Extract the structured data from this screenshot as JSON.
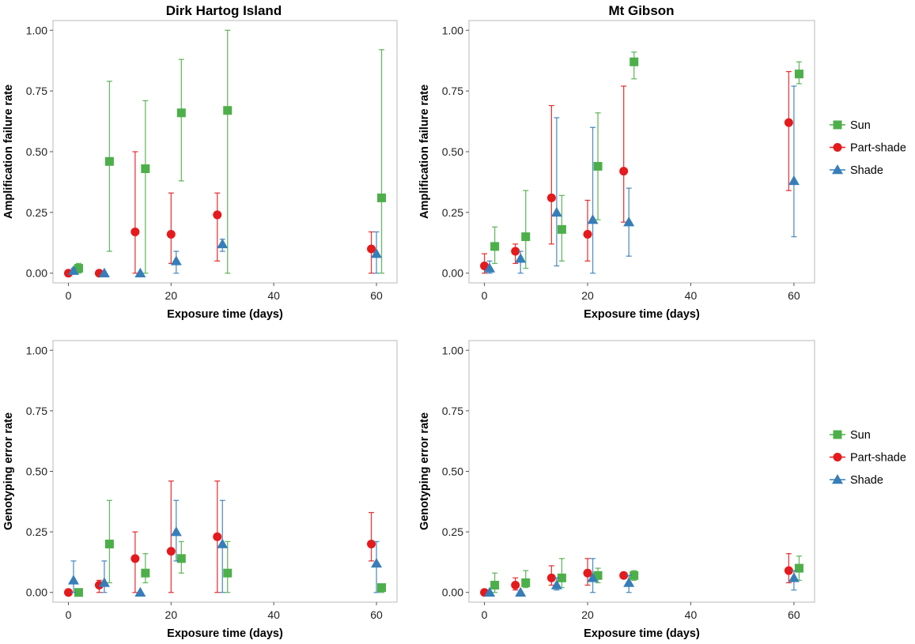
{
  "legend": {
    "items": [
      {
        "label": "Sun",
        "color": "#4daf4a",
        "shape": "square"
      },
      {
        "label": "Part-shade",
        "color": "#e41a1c",
        "shape": "circle"
      },
      {
        "label": "Shade",
        "color": "#377eb8",
        "shape": "triangle"
      }
    ]
  },
  "chart_data": [
    {
      "type": "scatter",
      "title": "Dirk Hartog Island",
      "xlabel": "Exposure time (days)",
      "ylabel": "Amplification failure rate",
      "xlim": [
        -3,
        64
      ],
      "ylim": [
        -0.04,
        1.04
      ],
      "xticks": [
        0,
        20,
        40,
        60
      ],
      "yticks": [
        0.0,
        0.25,
        0.5,
        0.75,
        1.0
      ],
      "series": [
        {
          "name": "Sun",
          "points": [
            {
              "x": 2,
              "y": 0.02,
              "lo": 0.0,
              "hi": 0.04
            },
            {
              "x": 8,
              "y": 0.46,
              "lo": 0.09,
              "hi": 0.79
            },
            {
              "x": 15,
              "y": 0.43,
              "lo": 0.0,
              "hi": 0.71
            },
            {
              "x": 22,
              "y": 0.66,
              "lo": 0.38,
              "hi": 0.88
            },
            {
              "x": 31,
              "y": 0.67,
              "lo": 0.0,
              "hi": 1.0
            },
            {
              "x": 61,
              "y": 0.31,
              "lo": 0.0,
              "hi": 0.92
            }
          ]
        },
        {
          "name": "Part-shade",
          "points": [
            {
              "x": 0,
              "y": 0.0,
              "lo": 0.0,
              "hi": 0.0
            },
            {
              "x": 6,
              "y": 0.0,
              "lo": 0.0,
              "hi": 0.0
            },
            {
              "x": 13,
              "y": 0.17,
              "lo": 0.0,
              "hi": 0.5
            },
            {
              "x": 20,
              "y": 0.16,
              "lo": 0.04,
              "hi": 0.33
            },
            {
              "x": 29,
              "y": 0.24,
              "lo": 0.05,
              "hi": 0.33
            },
            {
              "x": 59,
              "y": 0.1,
              "lo": 0.0,
              "hi": 0.17
            }
          ]
        },
        {
          "name": "Shade",
          "points": [
            {
              "x": 1,
              "y": 0.01,
              "lo": 0.0,
              "hi": 0.02
            },
            {
              "x": 7,
              "y": 0.0,
              "lo": 0.0,
              "hi": 0.0
            },
            {
              "x": 14,
              "y": 0.0,
              "lo": 0.0,
              "hi": 0.0
            },
            {
              "x": 21,
              "y": 0.05,
              "lo": 0.0,
              "hi": 0.09
            },
            {
              "x": 30,
              "y": 0.12,
              "lo": 0.09,
              "hi": 0.14
            },
            {
              "x": 60,
              "y": 0.08,
              "lo": 0.0,
              "hi": 0.17
            }
          ]
        }
      ]
    },
    {
      "type": "scatter",
      "title": "Mt Gibson",
      "xlabel": "Exposure time (days)",
      "ylabel": "Amplification failure rate",
      "xlim": [
        -3,
        64
      ],
      "ylim": [
        -0.04,
        1.04
      ],
      "xticks": [
        0,
        20,
        40,
        60
      ],
      "yticks": [
        0.0,
        0.25,
        0.5,
        0.75,
        1.0
      ],
      "series": [
        {
          "name": "Sun",
          "points": [
            {
              "x": 2,
              "y": 0.11,
              "lo": 0.04,
              "hi": 0.19
            },
            {
              "x": 8,
              "y": 0.15,
              "lo": 0.02,
              "hi": 0.34
            },
            {
              "x": 15,
              "y": 0.18,
              "lo": 0.05,
              "hi": 0.32
            },
            {
              "x": 22,
              "y": 0.44,
              "lo": 0.22,
              "hi": 0.66
            },
            {
              "x": 29,
              "y": 0.87,
              "lo": 0.8,
              "hi": 0.91
            },
            {
              "x": 61,
              "y": 0.82,
              "lo": 0.78,
              "hi": 0.87
            }
          ]
        },
        {
          "name": "Part-shade",
          "points": [
            {
              "x": 0,
              "y": 0.03,
              "lo": 0.0,
              "hi": 0.08
            },
            {
              "x": 6,
              "y": 0.09,
              "lo": 0.04,
              "hi": 0.12
            },
            {
              "x": 13,
              "y": 0.31,
              "lo": 0.12,
              "hi": 0.69
            },
            {
              "x": 20,
              "y": 0.16,
              "lo": 0.05,
              "hi": 0.3
            },
            {
              "x": 27,
              "y": 0.42,
              "lo": 0.21,
              "hi": 0.77
            },
            {
              "x": 59,
              "y": 0.62,
              "lo": 0.34,
              "hi": 0.83
            }
          ]
        },
        {
          "name": "Shade",
          "points": [
            {
              "x": 1,
              "y": 0.02,
              "lo": 0.0,
              "hi": 0.05
            },
            {
              "x": 7,
              "y": 0.06,
              "lo": 0.0,
              "hi": 0.09
            },
            {
              "x": 14,
              "y": 0.25,
              "lo": 0.03,
              "hi": 0.64
            },
            {
              "x": 21,
              "y": 0.22,
              "lo": 0.0,
              "hi": 0.6
            },
            {
              "x": 28,
              "y": 0.21,
              "lo": 0.07,
              "hi": 0.35
            },
            {
              "x": 60,
              "y": 0.38,
              "lo": 0.15,
              "hi": 0.77
            }
          ]
        }
      ]
    },
    {
      "type": "scatter",
      "title": "",
      "xlabel": "Exposure time (days)",
      "ylabel": "Genotyping error rate",
      "xlim": [
        -3,
        64
      ],
      "ylim": [
        -0.04,
        1.04
      ],
      "xticks": [
        0,
        20,
        40,
        60
      ],
      "yticks": [
        0.0,
        0.25,
        0.5,
        0.75,
        1.0
      ],
      "series": [
        {
          "name": "Sun",
          "points": [
            {
              "x": 2,
              "y": 0.0,
              "lo": 0.0,
              "hi": 0.0
            },
            {
              "x": 8,
              "y": 0.2,
              "lo": 0.04,
              "hi": 0.38
            },
            {
              "x": 15,
              "y": 0.08,
              "lo": 0.04,
              "hi": 0.16
            },
            {
              "x": 22,
              "y": 0.14,
              "lo": 0.08,
              "hi": 0.21
            },
            {
              "x": 31,
              "y": 0.08,
              "lo": 0.0,
              "hi": 0.21
            },
            {
              "x": 61,
              "y": 0.02,
              "lo": 0.0,
              "hi": 0.03
            }
          ]
        },
        {
          "name": "Part-shade",
          "points": [
            {
              "x": 0,
              "y": 0.0,
              "lo": 0.0,
              "hi": 0.0
            },
            {
              "x": 6,
              "y": 0.03,
              "lo": 0.0,
              "hi": 0.05
            },
            {
              "x": 13,
              "y": 0.14,
              "lo": 0.0,
              "hi": 0.25
            },
            {
              "x": 20,
              "y": 0.17,
              "lo": 0.0,
              "hi": 0.46
            },
            {
              "x": 29,
              "y": 0.23,
              "lo": 0.0,
              "hi": 0.46
            },
            {
              "x": 59,
              "y": 0.2,
              "lo": 0.13,
              "hi": 0.33
            }
          ]
        },
        {
          "name": "Shade",
          "points": [
            {
              "x": 1,
              "y": 0.05,
              "lo": 0.0,
              "hi": 0.13
            },
            {
              "x": 7,
              "y": 0.04,
              "lo": 0.0,
              "hi": 0.13
            },
            {
              "x": 14,
              "y": 0.0,
              "lo": 0.0,
              "hi": 0.0
            },
            {
              "x": 21,
              "y": 0.25,
              "lo": 0.13,
              "hi": 0.38
            },
            {
              "x": 30,
              "y": 0.2,
              "lo": 0.0,
              "hi": 0.38
            },
            {
              "x": 60,
              "y": 0.12,
              "lo": 0.0,
              "hi": 0.21
            }
          ]
        }
      ]
    },
    {
      "type": "scatter",
      "title": "",
      "xlabel": "Exposure time (days)",
      "ylabel": "Genotyping error rate",
      "xlim": [
        -3,
        64
      ],
      "ylim": [
        -0.04,
        1.04
      ],
      "xticks": [
        0,
        20,
        40,
        60
      ],
      "yticks": [
        0.0,
        0.25,
        0.5,
        0.75,
        1.0
      ],
      "series": [
        {
          "name": "Sun",
          "points": [
            {
              "x": 2,
              "y": 0.03,
              "lo": 0.0,
              "hi": 0.08
            },
            {
              "x": 8,
              "y": 0.04,
              "lo": 0.02,
              "hi": 0.09
            },
            {
              "x": 15,
              "y": 0.06,
              "lo": 0.02,
              "hi": 0.14
            },
            {
              "x": 22,
              "y": 0.07,
              "lo": 0.04,
              "hi": 0.1
            },
            {
              "x": 29,
              "y": 0.07,
              "lo": 0.05,
              "hi": 0.09
            },
            {
              "x": 61,
              "y": 0.1,
              "lo": 0.05,
              "hi": 0.15
            }
          ]
        },
        {
          "name": "Part-shade",
          "points": [
            {
              "x": 0,
              "y": 0.0,
              "lo": 0.0,
              "hi": 0.0
            },
            {
              "x": 6,
              "y": 0.03,
              "lo": 0.01,
              "hi": 0.06
            },
            {
              "x": 13,
              "y": 0.06,
              "lo": 0.03,
              "hi": 0.11
            },
            {
              "x": 20,
              "y": 0.08,
              "lo": 0.03,
              "hi": 0.14
            },
            {
              "x": 27,
              "y": 0.07,
              "lo": 0.07,
              "hi": 0.08
            },
            {
              "x": 59,
              "y": 0.09,
              "lo": 0.04,
              "hi": 0.16
            }
          ]
        },
        {
          "name": "Shade",
          "points": [
            {
              "x": 1,
              "y": 0.0,
              "lo": 0.0,
              "hi": 0.0
            },
            {
              "x": 7,
              "y": 0.0,
              "lo": 0.0,
              "hi": 0.0
            },
            {
              "x": 14,
              "y": 0.03,
              "lo": 0.01,
              "hi": 0.06
            },
            {
              "x": 21,
              "y": 0.06,
              "lo": 0.0,
              "hi": 0.14
            },
            {
              "x": 28,
              "y": 0.04,
              "lo": 0.0,
              "hi": 0.07
            },
            {
              "x": 60,
              "y": 0.06,
              "lo": 0.01,
              "hi": 0.09
            }
          ]
        }
      ]
    }
  ]
}
